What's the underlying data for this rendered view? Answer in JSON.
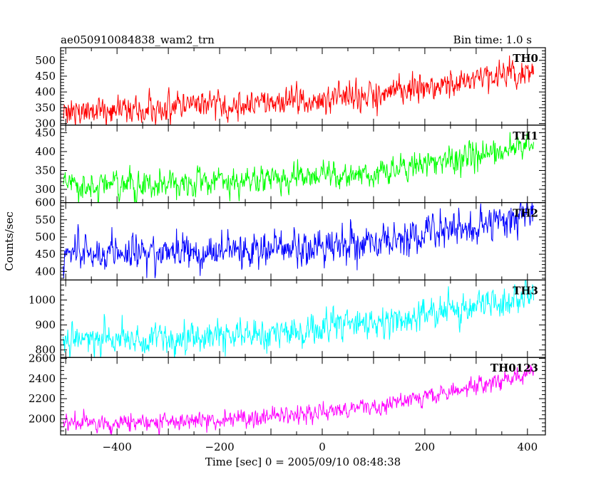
{
  "chart_data": {
    "type": "line",
    "title": "ae050910084838_wam2_trn",
    "subtitle": "Bin time: 1.0 s",
    "xlabel": "Time [sec] 0 = 2005/09/10 08:48:38",
    "ylabel": "Counts/sec",
    "xlim": [
      -510,
      435
    ],
    "xticks": [
      -400,
      -200,
      0,
      200,
      400
    ],
    "grid": false,
    "x_range_data": [
      -505,
      412
    ],
    "bin_time_s": 1.0,
    "panels": [
      {
        "name": "TH0",
        "color": "#ff0000",
        "ylim": [
          295,
          540
        ],
        "yticks": [
          300,
          350,
          400,
          450,
          500
        ],
        "trend": {
          "x": [
            -505,
            -300,
            -100,
            100,
            300,
            412
          ],
          "y": [
            340,
            350,
            365,
            395,
            440,
            465
          ]
        },
        "noise_sd": 22
      },
      {
        "name": "TH1",
        "color": "#00ff00",
        "ylim": [
          265,
          470
        ],
        "yticks": [
          300,
          350,
          400,
          450
        ],
        "trend": {
          "x": [
            -505,
            -300,
            -100,
            100,
            300,
            412
          ],
          "y": [
            310,
            315,
            325,
            345,
            390,
            415
          ]
        },
        "noise_sd": 18
      },
      {
        "name": "TH2",
        "color": "#0000ff",
        "ylim": [
          375,
          600
        ],
        "yticks": [
          400,
          450,
          500,
          550,
          600
        ],
        "trend": {
          "x": [
            -505,
            -300,
            -100,
            100,
            300,
            412
          ],
          "y": [
            450,
            455,
            465,
            490,
            535,
            560
          ]
        },
        "noise_sd": 25
      },
      {
        "name": "TH3",
        "color": "#00ffff",
        "ylim": [
          770,
          1080
        ],
        "yticks": [
          800,
          900,
          1000
        ],
        "trend": {
          "x": [
            -505,
            -300,
            -100,
            100,
            300,
            412
          ],
          "y": [
            840,
            850,
            865,
            910,
            975,
            1020
          ]
        },
        "noise_sd": 30
      },
      {
        "name": "TH0123",
        "color": "#ff00ff",
        "ylim": [
          1840,
          2610
        ],
        "yticks": [
          2000,
          2200,
          2400,
          2600
        ],
        "trend": {
          "x": [
            -505,
            -300,
            -100,
            100,
            300,
            412
          ],
          "y": [
            1945,
            1970,
            2010,
            2120,
            2320,
            2470
          ]
        },
        "noise_sd": 45
      }
    ]
  }
}
